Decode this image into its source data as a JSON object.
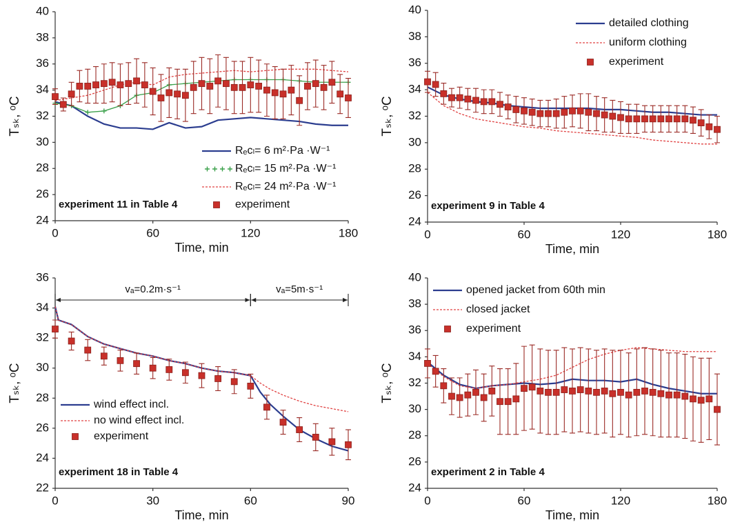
{
  "chart_data": [
    {
      "type": "line",
      "xlabel": "Time, min",
      "ylabel": "Tₛₖ, ᵒC",
      "annotation": "experiment 11 in Table 4",
      "xlim": [
        0,
        180
      ],
      "xticks": [
        0,
        60,
        120,
        180
      ],
      "ylim": [
        24,
        40
      ],
      "yticks": [
        24,
        26,
        28,
        30,
        32,
        34,
        36,
        38,
        40
      ],
      "legend": "lower right",
      "series": [
        {
          "name": "Rₑcₗ= 6 m²·Pa ·W⁻¹",
          "color": "#2b3d8f",
          "style": "solid",
          "x": [
            0,
            10,
            20,
            30,
            40,
            50,
            60,
            70,
            80,
            90,
            100,
            110,
            120,
            130,
            140,
            150,
            160,
            170,
            180
          ],
          "values": [
            33.1,
            32.8,
            32.0,
            31.4,
            31.1,
            31.1,
            31.0,
            31.5,
            31.1,
            31.2,
            31.7,
            31.8,
            31.9,
            31.8,
            31.7,
            31.6,
            31.4,
            31.3,
            31.3
          ]
        },
        {
          "name": "Rₑcₗ= 15 m²·Pa ·W⁻¹",
          "color": "#3aa04a",
          "style": "plus",
          "x": [
            0,
            10,
            20,
            30,
            40,
            50,
            60,
            70,
            80,
            90,
            100,
            110,
            120,
            130,
            140,
            150,
            160,
            170,
            180
          ],
          "values": [
            33.0,
            32.8,
            32.3,
            32.4,
            32.8,
            33.6,
            33.8,
            34.4,
            34.5,
            34.6,
            34.7,
            34.8,
            34.8,
            34.8,
            34.8,
            34.7,
            34.6,
            34.6,
            34.6
          ]
        },
        {
          "name": "Rₑcₗ= 24 m²·Pa ·W⁻¹",
          "color": "#e04040",
          "style": "dotted",
          "x": [
            0,
            10,
            20,
            30,
            40,
            50,
            60,
            70,
            80,
            90,
            100,
            110,
            120,
            130,
            140,
            150,
            160,
            170,
            180
          ],
          "values": [
            33.2,
            33.4,
            33.6,
            34.0,
            34.4,
            34.6,
            34.4,
            35.0,
            35.2,
            35.3,
            35.4,
            35.5,
            35.4,
            35.5,
            35.6,
            35.6,
            35.6,
            35.5,
            35.4
          ]
        },
        {
          "name": "experiment",
          "color": "#c8302a",
          "style": "square",
          "x": [
            0,
            5,
            10,
            15,
            20,
            25,
            30,
            35,
            40,
            45,
            50,
            55,
            60,
            65,
            70,
            75,
            80,
            85,
            90,
            95,
            100,
            105,
            110,
            115,
            120,
            125,
            130,
            135,
            140,
            145,
            150,
            155,
            160,
            165,
            170,
            175,
            180
          ],
          "values": [
            33.5,
            32.9,
            33.7,
            34.3,
            34.3,
            34.4,
            34.5,
            34.6,
            34.4,
            34.5,
            34.7,
            34.4,
            33.9,
            33.4,
            33.8,
            33.7,
            33.6,
            34.2,
            34.5,
            34.3,
            34.7,
            34.5,
            34.2,
            34.2,
            34.4,
            34.3,
            34.0,
            33.8,
            33.7,
            34.0,
            33.2,
            34.3,
            34.5,
            34.2,
            34.6,
            33.7,
            33.4
          ],
          "errors": [
            0.6,
            0.5,
            0.9,
            1.2,
            1.3,
            1.4,
            1.5,
            1.5,
            1.6,
            1.6,
            1.7,
            1.7,
            1.8,
            1.8,
            1.9,
            1.9,
            2.0,
            2.0,
            2.0,
            2.1,
            2.0,
            2.0,
            2.0,
            2.0,
            2.1,
            2.0,
            2.0,
            2.0,
            1.9,
            1.9,
            1.9,
            1.8,
            1.8,
            1.7,
            1.6,
            1.5,
            1.5
          ]
        }
      ]
    },
    {
      "type": "line",
      "xlabel": "Time, min",
      "ylabel": "Tₛₖ, ᵒC",
      "annotation": "experiment 9 in Table 4",
      "xlim": [
        0,
        180
      ],
      "xticks": [
        0,
        60,
        120,
        180
      ],
      "ylim": [
        24,
        40
      ],
      "yticks": [
        24,
        26,
        28,
        30,
        32,
        34,
        36,
        38,
        40
      ],
      "legend": "upper right",
      "series": [
        {
          "name": "detailed clothing",
          "color": "#2b3d8f",
          "style": "solid",
          "x": [
            0,
            10,
            20,
            30,
            40,
            50,
            60,
            70,
            80,
            90,
            100,
            110,
            120,
            130,
            140,
            150,
            160,
            170,
            180
          ],
          "values": [
            34.2,
            33.6,
            33.3,
            33.1,
            33.0,
            32.8,
            32.7,
            32.6,
            32.6,
            32.6,
            32.6,
            32.5,
            32.5,
            32.4,
            32.3,
            32.3,
            32.2,
            32.1,
            32.1
          ]
        },
        {
          "name": "uniform clothing",
          "color": "#e04040",
          "style": "dotted",
          "x": [
            0,
            10,
            20,
            30,
            40,
            50,
            60,
            70,
            80,
            90,
            100,
            110,
            120,
            130,
            140,
            150,
            160,
            170,
            180
          ],
          "values": [
            33.8,
            32.8,
            32.2,
            31.8,
            31.6,
            31.4,
            31.2,
            31.1,
            30.9,
            30.8,
            30.7,
            30.6,
            30.5,
            30.4,
            30.2,
            30.1,
            30.0,
            29.9,
            29.9
          ]
        },
        {
          "name": "experiment",
          "color": "#c8302a",
          "style": "square",
          "x": [
            0,
            5,
            10,
            15,
            20,
            25,
            30,
            35,
            40,
            45,
            50,
            55,
            60,
            65,
            70,
            75,
            80,
            85,
            90,
            95,
            100,
            105,
            110,
            115,
            120,
            125,
            130,
            135,
            140,
            145,
            150,
            155,
            160,
            165,
            170,
            175,
            180
          ],
          "values": [
            34.6,
            34.4,
            33.7,
            33.4,
            33.4,
            33.3,
            33.2,
            33.1,
            33.1,
            32.9,
            32.7,
            32.5,
            32.4,
            32.3,
            32.2,
            32.2,
            32.2,
            32.3,
            32.4,
            32.4,
            32.3,
            32.2,
            32.1,
            32.0,
            31.9,
            31.8,
            31.8,
            31.8,
            31.8,
            31.8,
            31.8,
            31.8,
            31.8,
            31.7,
            31.5,
            31.2,
            31.0
          ],
          "errors": [
            0.8,
            0.9,
            0.8,
            0.7,
            0.8,
            0.8,
            0.9,
            0.9,
            0.9,
            0.9,
            0.9,
            1.0,
            1.0,
            1.0,
            1.0,
            1.0,
            1.1,
            1.2,
            1.2,
            1.3,
            1.4,
            1.3,
            1.3,
            1.2,
            1.2,
            1.1,
            1.1,
            1.0,
            1.0,
            1.0,
            1.0,
            1.0,
            1.0,
            1.0,
            1.0,
            0.9,
            1.0
          ]
        }
      ]
    },
    {
      "type": "line",
      "xlabel": "Time, min",
      "ylabel": "Tₛₖ, ᵒC",
      "annotation": "experiment 18 in Table 4",
      "xlim": [
        0,
        90
      ],
      "xticks": [
        0,
        30,
        60,
        90
      ],
      "ylim": [
        22,
        36
      ],
      "yticks": [
        22,
        24,
        26,
        28,
        30,
        32,
        34,
        36
      ],
      "legend": "lower left",
      "spans": [
        {
          "text": "vₐ=0.2m·s⁻¹",
          "x": [
            0,
            60
          ]
        },
        {
          "text": "vₐ=5m·s⁻¹",
          "x": [
            60,
            90
          ]
        }
      ],
      "series": [
        {
          "name": "wind effect incl.",
          "color": "#2b3d8f",
          "style": "solid",
          "x": [
            0,
            1,
            5,
            10,
            15,
            20,
            25,
            30,
            35,
            40,
            45,
            50,
            55,
            60,
            63,
            66,
            70,
            75,
            80,
            85,
            90
          ],
          "values": [
            34.1,
            33.2,
            32.9,
            32.1,
            31.6,
            31.3,
            31.0,
            30.8,
            30.5,
            30.3,
            30.0,
            29.8,
            29.7,
            29.5,
            28.4,
            27.6,
            26.8,
            25.9,
            25.3,
            24.8,
            24.5
          ]
        },
        {
          "name": "no wind effect incl.",
          "color": "#e04040",
          "style": "dotted",
          "x": [
            0,
            1,
            5,
            10,
            15,
            20,
            25,
            30,
            35,
            40,
            45,
            50,
            55,
            60,
            63,
            66,
            70,
            75,
            80,
            85,
            90
          ],
          "values": [
            34.1,
            33.2,
            32.9,
            32.1,
            31.6,
            31.3,
            31.0,
            30.8,
            30.5,
            30.3,
            30.0,
            29.8,
            29.7,
            29.5,
            29.0,
            28.6,
            28.2,
            27.8,
            27.5,
            27.3,
            27.1
          ]
        },
        {
          "name": "experiment",
          "color": "#c8302a",
          "style": "square",
          "x": [
            0,
            5,
            10,
            15,
            20,
            25,
            30,
            35,
            40,
            45,
            50,
            55,
            60,
            65,
            70,
            75,
            80,
            85,
            90
          ],
          "values": [
            32.6,
            31.8,
            31.2,
            30.8,
            30.5,
            30.3,
            30.0,
            29.9,
            29.7,
            29.5,
            29.3,
            29.1,
            28.8,
            27.4,
            26.4,
            25.9,
            25.4,
            25.1,
            24.9
          ],
          "errors": [
            0.6,
            0.6,
            0.7,
            0.6,
            0.7,
            0.7,
            0.7,
            0.7,
            0.7,
            0.8,
            0.8,
            0.8,
            0.8,
            0.8,
            0.8,
            0.8,
            0.9,
            0.9,
            1.0
          ]
        }
      ]
    },
    {
      "type": "line",
      "xlabel": "Time, min",
      "ylabel": "Tₛₖ, ᵒC",
      "annotation": "experiment 2 in Table 4",
      "xlim": [
        0,
        180
      ],
      "xticks": [
        0,
        60,
        120,
        180
      ],
      "ylim": [
        24,
        40
      ],
      "yticks": [
        24,
        26,
        28,
        30,
        32,
        34,
        36,
        38,
        40
      ],
      "legend": "upper left",
      "series": [
        {
          "name": "opened jacket from 60th min",
          "color": "#2b3d8f",
          "style": "solid",
          "x": [
            0,
            10,
            20,
            30,
            40,
            50,
            60,
            70,
            80,
            90,
            100,
            110,
            120,
            130,
            140,
            150,
            160,
            170,
            180
          ],
          "values": [
            33.6,
            32.6,
            31.9,
            31.6,
            31.8,
            31.9,
            32.0,
            31.9,
            32.0,
            32.3,
            32.2,
            32.2,
            32.1,
            32.3,
            31.9,
            31.6,
            31.4,
            31.2,
            31.2
          ]
        },
        {
          "name": "closed jacket",
          "color": "#e04040",
          "style": "dotted",
          "x": [
            0,
            10,
            20,
            30,
            40,
            50,
            60,
            70,
            80,
            90,
            100,
            110,
            120,
            130,
            140,
            150,
            160,
            170,
            180
          ],
          "values": [
            33.5,
            32.5,
            31.8,
            31.6,
            31.8,
            31.9,
            32.1,
            32.3,
            32.6,
            33.2,
            33.8,
            34.2,
            34.5,
            34.7,
            34.6,
            34.5,
            34.4,
            34.4,
            34.4
          ]
        },
        {
          "name": "experiment",
          "color": "#c8302a",
          "style": "square",
          "x": [
            0,
            5,
            10,
            15,
            20,
            25,
            30,
            35,
            40,
            45,
            50,
            55,
            60,
            65,
            70,
            75,
            80,
            85,
            90,
            95,
            100,
            105,
            110,
            115,
            120,
            125,
            130,
            135,
            140,
            145,
            150,
            155,
            160,
            165,
            170,
            175,
            180
          ],
          "values": [
            33.5,
            32.9,
            31.8,
            31.0,
            30.9,
            31.1,
            31.3,
            30.9,
            31.4,
            30.6,
            30.6,
            30.8,
            31.6,
            31.7,
            31.4,
            31.3,
            31.3,
            31.5,
            31.4,
            31.5,
            31.4,
            31.3,
            31.4,
            31.2,
            31.3,
            31.1,
            31.3,
            31.4,
            31.3,
            31.2,
            31.1,
            31.1,
            31.0,
            30.8,
            30.7,
            30.8,
            30.0
          ],
          "errors": [
            1.1,
            1.2,
            1.3,
            1.4,
            1.5,
            1.6,
            1.7,
            1.8,
            1.9,
            2.5,
            2.5,
            2.7,
            3.2,
            3.2,
            3.2,
            3.2,
            3.2,
            3.2,
            3.2,
            3.2,
            3.2,
            3.2,
            3.2,
            3.3,
            3.2,
            3.2,
            3.3,
            3.3,
            3.3,
            3.3,
            3.2,
            3.2,
            3.2,
            3.2,
            3.2,
            3.1,
            2.7
          ]
        }
      ]
    }
  ]
}
